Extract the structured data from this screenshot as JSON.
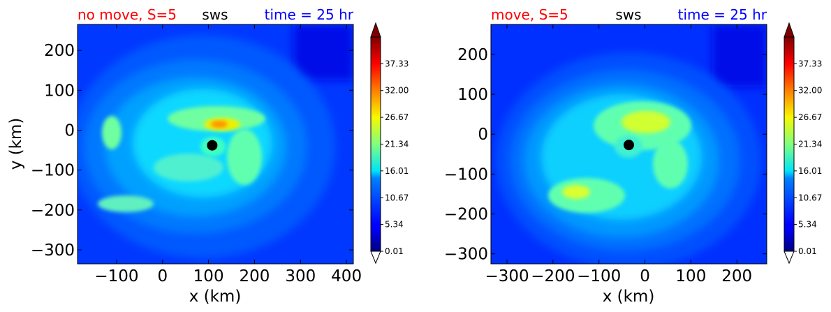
{
  "chart_data": [
    {
      "type": "heatmap",
      "title_left": "no move, S=5",
      "title_center": "sws",
      "title_right": "time = 25 hr",
      "xlabel": "x (km)",
      "ylabel": "y (km)",
      "xlim": [
        -185,
        415
      ],
      "ylim": [
        -335,
        265
      ],
      "xticks": [
        -100,
        0,
        100,
        200,
        300,
        400
      ],
      "yticks": [
        200,
        100,
        0,
        -100,
        -200,
        -300
      ],
      "xtick_labels": [
        "−100",
        "0",
        "100",
        "200",
        "300",
        "400"
      ],
      "ytick_labels": [
        "200",
        "100",
        "0",
        "−100",
        "−200",
        "−300"
      ],
      "center_marker": {
        "x": 108,
        "y": -38
      },
      "colorbar": {
        "min": 0.01,
        "max": 42.66,
        "extend": "both",
        "tick_values": [
          0.01,
          5.34,
          10.67,
          16.01,
          21.34,
          26.67,
          32.0,
          37.33
        ],
        "tick_labels": [
          "0.01",
          "5.34",
          "10.67",
          "16.01",
          "21.34",
          "26.67",
          "32.00",
          "37.33"
        ]
      }
    },
    {
      "type": "heatmap",
      "title_left": "move, S=5",
      "title_center": "sws",
      "title_right": "time = 25 hr",
      "xlabel": "x (km)",
      "ylabel": "",
      "xlim": [
        -335,
        265
      ],
      "ylim": [
        -325,
        275
      ],
      "xticks": [
        -300,
        -200,
        -100,
        0,
        100,
        200
      ],
      "yticks": [
        200,
        100,
        0,
        -100,
        -200,
        -300
      ],
      "xtick_labels": [
        "−300",
        "−200",
        "−100",
        "0",
        "100",
        "200"
      ],
      "ytick_labels": [
        "200",
        "100",
        "0",
        "−100",
        "−200",
        "−300"
      ],
      "center_marker": {
        "x": -35,
        "y": -27
      },
      "colorbar": {
        "min": 0.01,
        "max": 42.66,
        "extend": "both",
        "tick_values": [
          0.01,
          5.34,
          10.67,
          16.01,
          21.34,
          26.67,
          32.0,
          37.33
        ],
        "tick_labels": [
          "0.01",
          "5.34",
          "10.67",
          "16.01",
          "21.34",
          "26.67",
          "32.00",
          "37.33"
        ]
      }
    }
  ],
  "colors": {
    "title_left": "#ff0000",
    "title_center": "#000000",
    "title_right": "#0000ff"
  }
}
